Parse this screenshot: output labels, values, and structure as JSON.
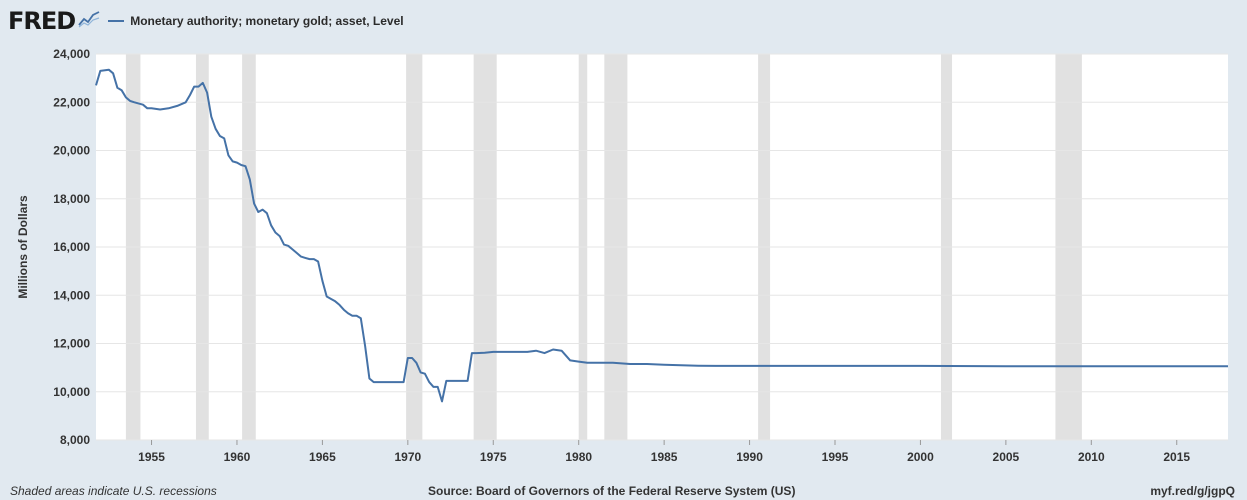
{
  "header": {
    "logo_text": "FRED",
    "logo_icon": "line-graph-icon",
    "legend_label": "Monetary authority; monetary gold; asset, Level"
  },
  "footer": {
    "recession_note": "Shaded areas indicate U.S. recessions",
    "source": "Source: Board of Governors of the Federal Reserve System (US)",
    "short_url": "myf.red/g/jgpQ"
  },
  "colors": {
    "background": "#e1e9f0",
    "plot_background": "#ffffff",
    "line": "#4572a7",
    "recession": "#e1e1e1",
    "grid": "#e6e6e6"
  },
  "chart_data": {
    "type": "line",
    "title": "",
    "xlabel": "",
    "ylabel": "Millions of Dollars",
    "xlim": [
      1951.75,
      2018.0
    ],
    "ylim": [
      8000,
      24000
    ],
    "x_ticks": [
      1955,
      1960,
      1965,
      1970,
      1975,
      1980,
      1985,
      1990,
      1995,
      2000,
      2005,
      2010,
      2015
    ],
    "y_ticks": [
      8000,
      10000,
      12000,
      14000,
      16000,
      18000,
      20000,
      22000,
      24000
    ],
    "y_tick_labels": [
      "8,000",
      "10,000",
      "12,000",
      "14,000",
      "16,000",
      "18,000",
      "20,000",
      "22,000",
      "24,000"
    ],
    "grid": true,
    "legend_position": "top-left",
    "recessions": [
      [
        1953.5,
        1954.35
      ],
      [
        1957.6,
        1958.35
      ],
      [
        1960.3,
        1961.1
      ],
      [
        1969.9,
        1970.85
      ],
      [
        1973.85,
        1975.2
      ],
      [
        1980.0,
        1980.5
      ],
      [
        1981.5,
        1982.85
      ],
      [
        1990.5,
        1991.2
      ],
      [
        2001.2,
        2001.85
      ],
      [
        2007.9,
        2009.45
      ]
    ],
    "series": [
      {
        "x": [
          1951.75,
          1952.0,
          1952.5,
          1952.75,
          1953.0,
          1953.25,
          1953.5,
          1953.75,
          1954.0,
          1954.5,
          1954.75,
          1955.0,
          1955.5,
          1956.0,
          1956.5,
          1957.0,
          1957.25,
          1957.5,
          1957.75,
          1958.0,
          1958.25,
          1958.5,
          1958.75,
          1959.0,
          1959.25,
          1959.5,
          1959.75,
          1960.0,
          1960.25,
          1960.5,
          1960.75,
          1961.0,
          1961.25,
          1961.5,
          1961.75,
          1962.0,
          1962.25,
          1962.5,
          1962.75,
          1963.0,
          1963.25,
          1963.5,
          1963.75,
          1964.0,
          1964.25,
          1964.5,
          1964.75,
          1965.0,
          1965.25,
          1965.5,
          1965.75,
          1966.0,
          1966.25,
          1966.5,
          1966.75,
          1967.0,
          1967.25,
          1967.5,
          1967.75,
          1968.0,
          1968.25,
          1968.5,
          1969.0,
          1969.5,
          1969.75,
          1970.0,
          1970.25,
          1970.5,
          1970.75,
          1971.0,
          1971.25,
          1971.5,
          1971.75,
          1972.0,
          1972.25,
          1972.5,
          1973.0,
          1973.5,
          1973.75,
          1974.0,
          1974.5,
          1975.0,
          1975.5,
          1976.0,
          1976.5,
          1977.0,
          1977.5,
          1978.0,
          1978.5,
          1979.0,
          1979.5,
          1980.0,
          1980.5,
          1981.0,
          1982.0,
          1983.0,
          1984.0,
          1985.0,
          1986.0,
          1987.0,
          1988.0,
          1990.0,
          1995.0,
          2000.0,
          2005.0,
          2010.0,
          2015.0,
          2018.0
        ],
        "values": [
          22700,
          23300,
          23350,
          23200,
          22600,
          22500,
          22200,
          22050,
          22000,
          21900,
          21750,
          21750,
          21700,
          21750,
          21850,
          22000,
          22300,
          22650,
          22650,
          22800,
          22400,
          21400,
          20900,
          20600,
          20500,
          19800,
          19550,
          19500,
          19400,
          19350,
          18800,
          17800,
          17450,
          17550,
          17400,
          16900,
          16600,
          16450,
          16100,
          16050,
          15900,
          15750,
          15600,
          15550,
          15500,
          15500,
          15400,
          14600,
          13950,
          13850,
          13750,
          13600,
          13400,
          13250,
          13150,
          13150,
          13050,
          11900,
          10550,
          10400,
          10400,
          10400,
          10400,
          10400,
          10400,
          11400,
          11400,
          11200,
          10800,
          10750,
          10400,
          10200,
          10200,
          9600,
          10450,
          10450,
          10450,
          10450,
          11600,
          11600,
          11620,
          11650,
          11650,
          11650,
          11650,
          11650,
          11700,
          11600,
          11750,
          11700,
          11300,
          11250,
          11200,
          11200,
          11200,
          11150,
          11150,
          11120,
          11100,
          11080,
          11070,
          11070,
          11070,
          11070,
          11060,
          11060,
          11060,
          11060
        ]
      }
    ]
  }
}
